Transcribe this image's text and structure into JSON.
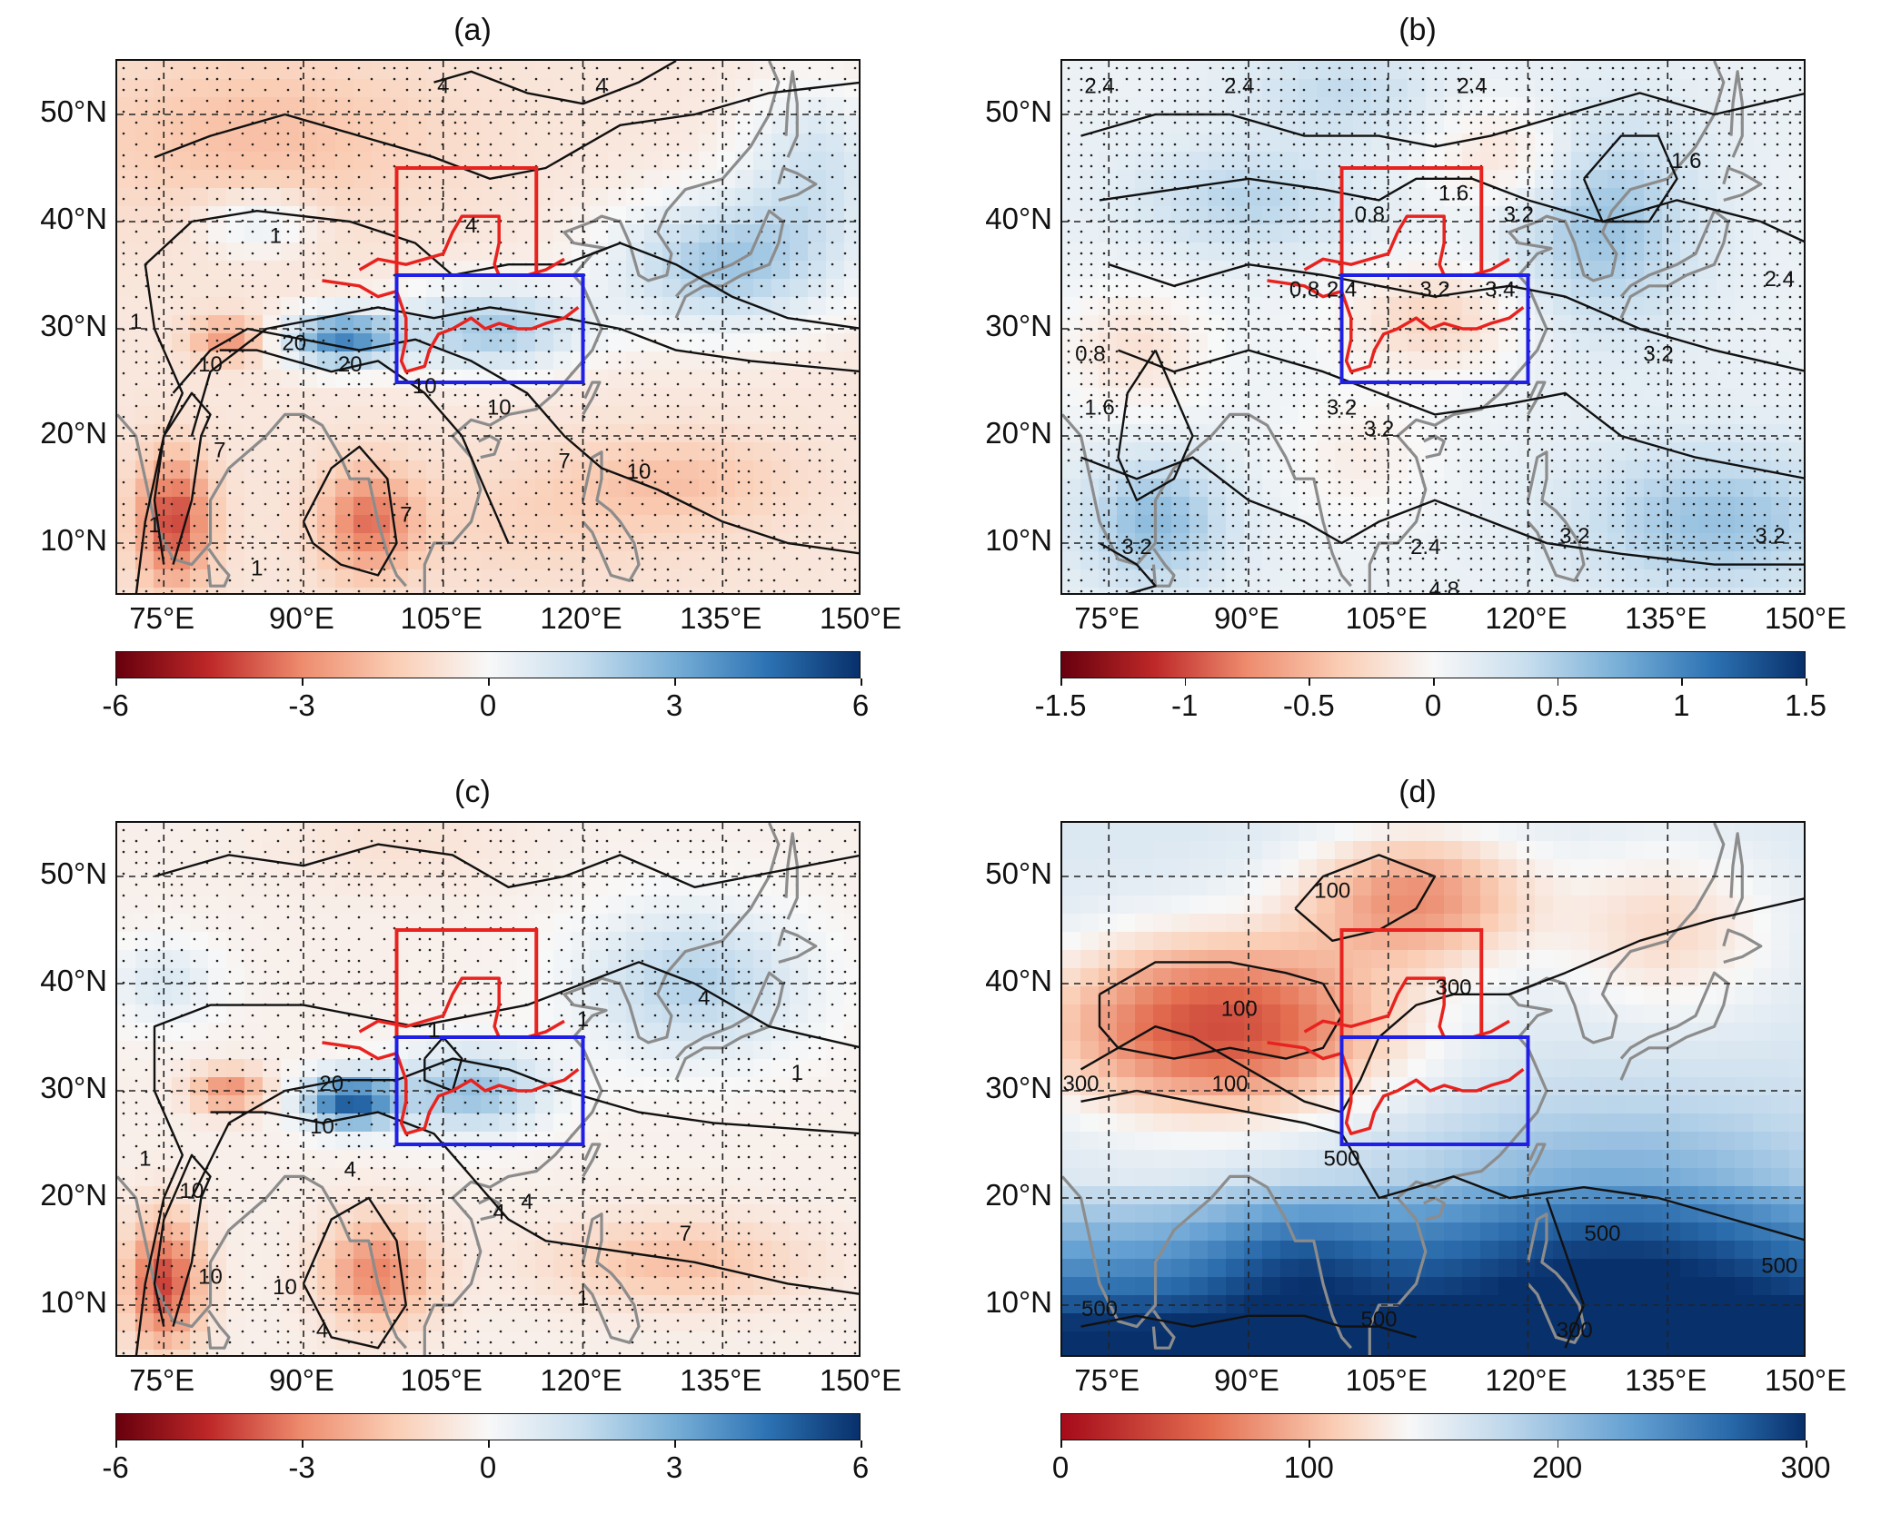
{
  "figure": {
    "panels": [
      {
        "id": "a",
        "title": "(a)",
        "lat_labels": [
          "50°N",
          "40°N",
          "30°N",
          "20°N",
          "10°N"
        ],
        "lon_labels": [
          "75°E",
          "90°E",
          "105°E",
          "120°E",
          "135°E",
          "150°E"
        ],
        "colorbar": {
          "ticks": [
            "-6",
            "-3",
            "0",
            "3",
            "6"
          ],
          "palette": "diverging"
        },
        "contour_labels": [
          "4",
          "4",
          "4",
          "1",
          "1",
          "10",
          "20",
          "20",
          "10",
          "7",
          "10",
          "7",
          "10",
          "1",
          "1",
          "7"
        ],
        "background": "anomaly-a"
      },
      {
        "id": "b",
        "title": "(b)",
        "lat_labels": [
          "50°N",
          "40°N",
          "30°N",
          "20°N",
          "10°N"
        ],
        "lon_labels": [
          "75°E",
          "90°E",
          "105°E",
          "120°E",
          "135°E",
          "150°E"
        ],
        "colorbar": {
          "ticks": [
            "-1.5",
            "-1",
            "-0.5",
            "0",
            "0.5",
            "1",
            "1.5"
          ],
          "palette": "diverging"
        },
        "contour_labels": [
          "2.4",
          "2.4",
          "2.4",
          "0.8",
          "1.6",
          "3.2",
          "0.8",
          "2.4",
          "3.2",
          "3.4",
          "3.2",
          "0.8",
          "1.6",
          "3.2",
          "3.2",
          "2.4",
          "3.2",
          "4.8",
          "3.2",
          "3.2",
          "2.4",
          "1.6"
        ],
        "background": "anomaly-b"
      },
      {
        "id": "c",
        "title": "(c)",
        "lat_labels": [
          "50°N",
          "40°N",
          "30°N",
          "20°N",
          "10°N"
        ],
        "lon_labels": [
          "75°E",
          "90°E",
          "105°E",
          "120°E",
          "135°E",
          "150°E"
        ],
        "colorbar": {
          "ticks": [
            "-6",
            "-3",
            "0",
            "3",
            "6"
          ],
          "palette": "diverging"
        },
        "contour_labels": [
          "1",
          "1",
          "20",
          "10",
          "1",
          "10",
          "10",
          "4",
          "4",
          "1",
          "7",
          "4",
          "4",
          "1",
          "10",
          "4"
        ],
        "background": "anomaly-c"
      },
      {
        "id": "d",
        "title": "(d)",
        "lat_labels": [
          "50°N",
          "40°N",
          "30°N",
          "20°N",
          "10°N"
        ],
        "lon_labels": [
          "75°E",
          "90°E",
          "105°E",
          "120°E",
          "135°E",
          "150°E"
        ],
        "colorbar": {
          "ticks": [
            "0",
            "100",
            "200",
            "300"
          ],
          "palette": "sequential"
        },
        "contour_labels": [
          "100",
          "100",
          "100",
          "300",
          "300",
          "500",
          "500",
          "500",
          "500",
          "500",
          "300"
        ],
        "background": "climatology-d"
      }
    ],
    "regions": {
      "north_box": {
        "lon": [
          100,
          115
        ],
        "lat": [
          35,
          45
        ],
        "color": "#e8231f"
      },
      "south_box": {
        "lon": [
          100,
          120
        ],
        "lat": [
          25,
          35
        ],
        "color": "#1f1fe6"
      }
    },
    "map_extent": {
      "lon": [
        70,
        150
      ],
      "lat": [
        5,
        55
      ]
    },
    "colors": {
      "coast": "#8c8c8c",
      "contour": "#111111",
      "river": "#e8231f"
    }
  }
}
